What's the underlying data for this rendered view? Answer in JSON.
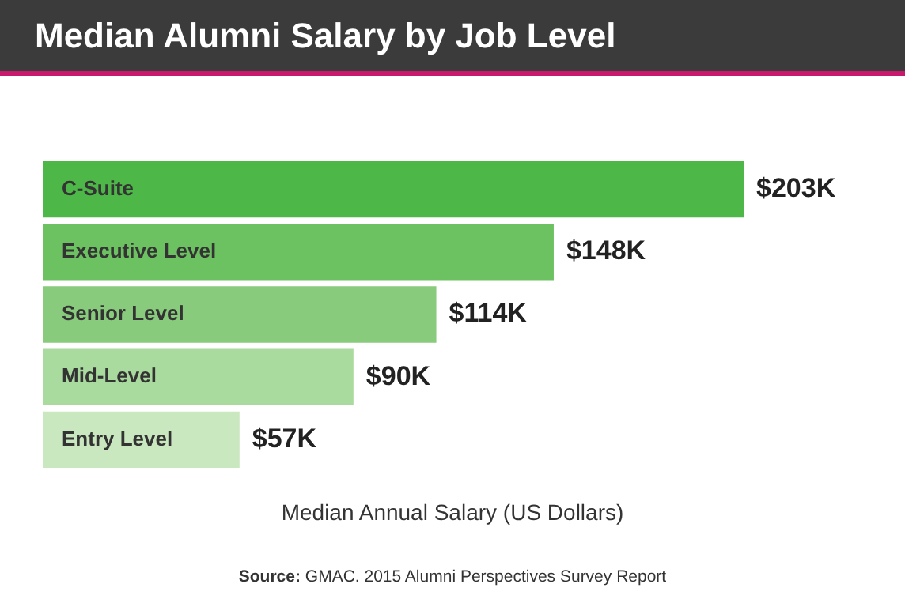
{
  "chart_data": {
    "type": "bar",
    "orientation": "horizontal",
    "title": "Median Alumni Salary by Job Level",
    "xlabel": "Median Annual Salary (US Dollars)",
    "categories": [
      "C-Suite",
      "Executive Level",
      "Senior Level",
      "Mid-Level",
      "Entry Level"
    ],
    "values": [
      203,
      148,
      114,
      90,
      57
    ],
    "colors": [
      "#4db848",
      "#6cc160",
      "#88cb7c",
      "#aadb9e",
      "#c9e8bf"
    ],
    "value_labels": [
      "$203K",
      "$148K",
      "$114K",
      "$90K",
      "$57K"
    ],
    "annotations": [
      "Source: GMAC. 2015 Alumni Perspectives Survey Report"
    ]
  }
}
